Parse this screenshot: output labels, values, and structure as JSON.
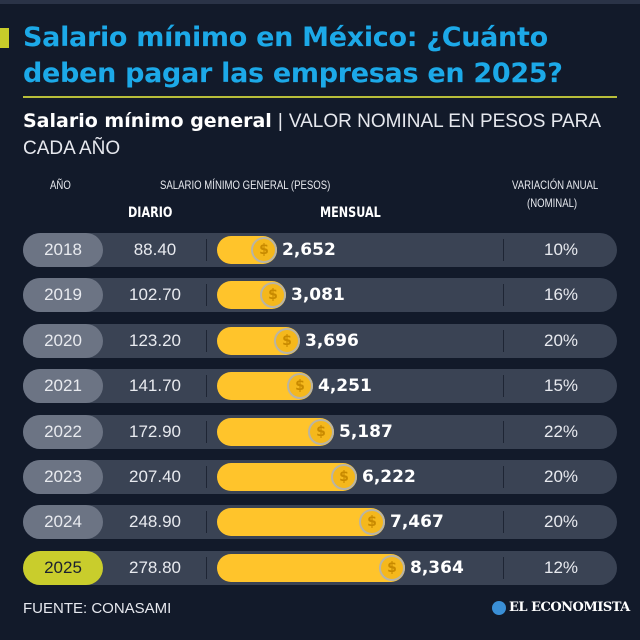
{
  "header": {
    "title": "Salario mínimo en México: ¿Cuánto deben pagar las empresas en 2025?",
    "subtitle_bold": "Salario mínimo general",
    "subtitle_sep": "|",
    "subtitle_light": "VALOR NOMINAL EN PESOS PARA CADA AÑO"
  },
  "columns": {
    "year": "AÑO",
    "salary_group": "SALARIO MÍNIMO GENERAL (PESOS)",
    "daily": "DIARIO",
    "monthly": "MENSUAL",
    "variation_line1": "VARIACIÓN ANUAL",
    "variation_line2": "(NOMINAL)"
  },
  "colors": {
    "background": "#121a2a",
    "title": "#1ca9e8",
    "bar": "#ffc42b",
    "row": "#3a4354",
    "year_pill": "#6c7484",
    "highlight_pill": "#c9cd2c"
  },
  "coin_icon": "dollar-coin-icon",
  "coin_symbol": "$",
  "chart_data": {
    "type": "bar",
    "orientation": "horizontal",
    "categories": [
      "2018",
      "2019",
      "2020",
      "2021",
      "2022",
      "2023",
      "2024",
      "2025"
    ],
    "daily": [
      "88.40",
      "102.70",
      "123.20",
      "141.70",
      "172.90",
      "207.40",
      "248.90",
      "278.80"
    ],
    "values": [
      2652,
      3081,
      3696,
      4251,
      5187,
      6222,
      7467,
      8364
    ],
    "value_labels": [
      "2,652",
      "3,081",
      "3,696",
      "4,251",
      "5,187",
      "6,222",
      "7,467",
      "8,364"
    ],
    "variation": [
      "10%",
      "16%",
      "20%",
      "15%",
      "22%",
      "20%",
      "20%",
      "12%"
    ],
    "highlight": "2025"
  },
  "footer": {
    "source": "FUENTE: CONASAMI",
    "logo": "EL ECONOMISTA"
  }
}
